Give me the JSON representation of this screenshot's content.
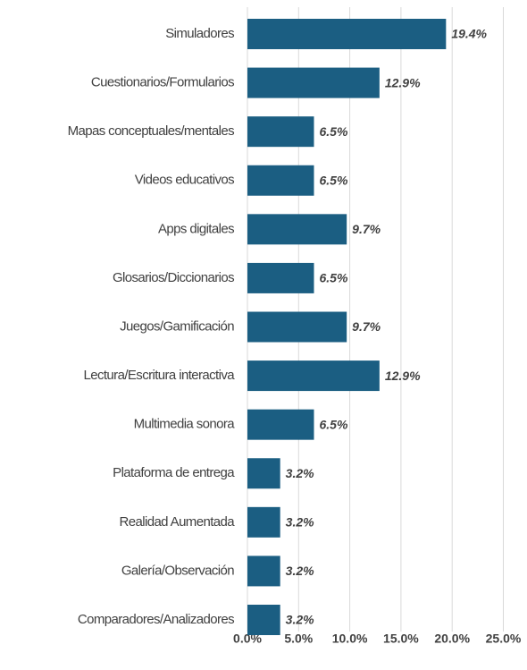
{
  "chart_data": {
    "type": "bar",
    "orientation": "horizontal",
    "categories": [
      "Simuladores",
      "Cuestionarios/Formularios",
      "Mapas conceptuales/mentales",
      "Videos educativos",
      "Apps digitales",
      "Glosarios/Diccionarios",
      "Juegos/Gamificación",
      "Lectura/Escritura interactiva",
      "Multimedia sonora",
      "Plataforma de entrega",
      "Realidad Aumentada",
      "Galería/Observación",
      "Comparadores/Analizadores"
    ],
    "values": [
      19.4,
      12.9,
      6.5,
      6.5,
      9.7,
      6.5,
      9.7,
      12.9,
      6.5,
      3.2,
      3.2,
      3.2,
      3.2
    ],
    "value_labels": [
      "19.4%",
      "12.9%",
      "6.5%",
      "6.5%",
      "9.7%",
      "6.5%",
      "9.7%",
      "12.9%",
      "6.5%",
      "3.2%",
      "3.2%",
      "3.2%",
      "3.2%"
    ],
    "color": "#1b5e82",
    "xlim": [
      0,
      25
    ],
    "xticks": [
      {
        "value": 0,
        "label": "0.0%"
      },
      {
        "value": 5,
        "label": "5.0%"
      },
      {
        "value": 10,
        "label": "10.0%"
      },
      {
        "value": 15,
        "label": "15.0%"
      },
      {
        "value": 20,
        "label": "20.0%"
      },
      {
        "value": 25,
        "label": "25.0%"
      }
    ],
    "grid": true
  }
}
